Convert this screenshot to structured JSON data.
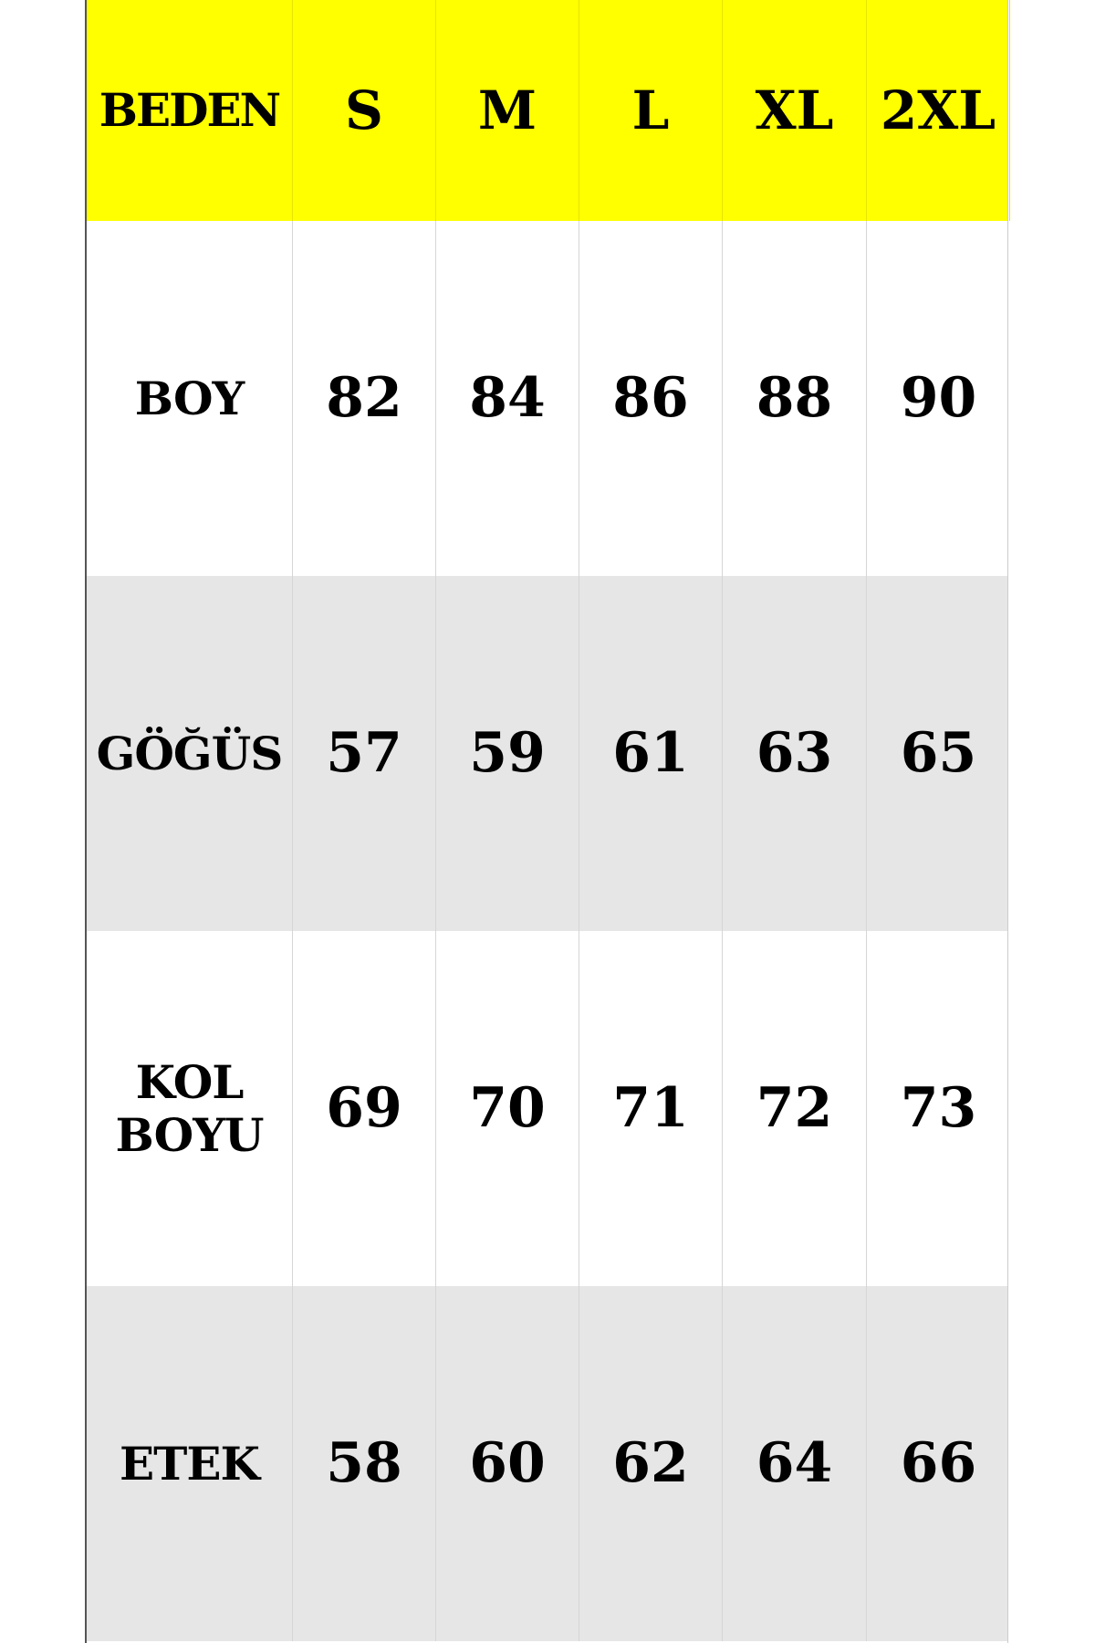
{
  "header": {
    "label": "BEDEN",
    "sizes": [
      "S",
      "M",
      "L",
      "XL",
      "2XL"
    ]
  },
  "rows": [
    {
      "label": "BOY",
      "values": [
        "82",
        "84",
        "86",
        "88",
        "90"
      ]
    },
    {
      "label": "GÖĞÜS",
      "values": [
        "57",
        "59",
        "61",
        "63",
        "65"
      ]
    },
    {
      "label": "KOL\nBOYU",
      "values": [
        "69",
        "70",
        "71",
        "72",
        "73"
      ]
    },
    {
      "label": "ETEK",
      "values": [
        "58",
        "60",
        "62",
        "64",
        "66"
      ]
    }
  ],
  "colors": {
    "header_bg": "#ffff00",
    "shaded_row_bg": "#e6e6e6",
    "row_bg": "#ffffff"
  }
}
